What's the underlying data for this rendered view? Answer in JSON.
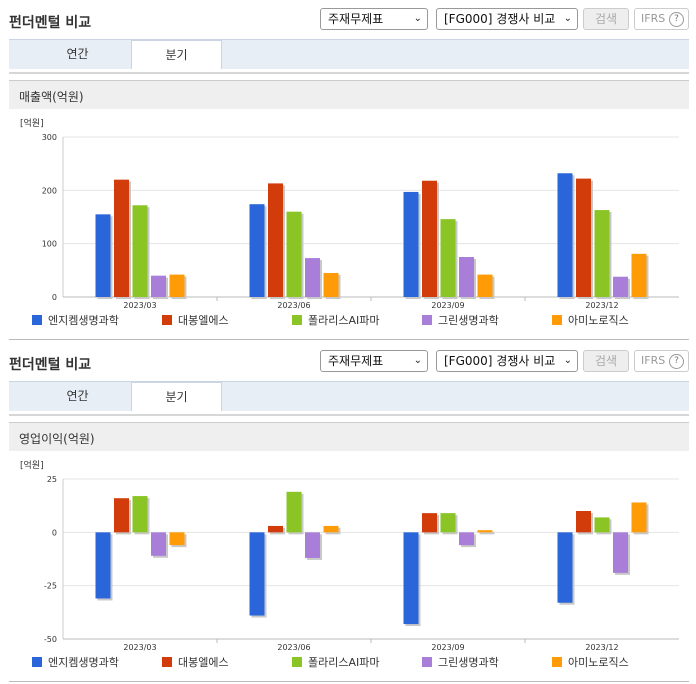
{
  "header": {
    "title": "펀더멘털 비교",
    "select_type": "주재무제표",
    "select_compare": "[FG000] 경쟁사 비교",
    "search_label": "검색",
    "ifrs_label": "IFRS",
    "help_glyph": "?"
  },
  "tabs": [
    "연간",
    "분기"
  ],
  "colors": {
    "accent": "#2A66D9",
    "series": [
      "#2A66D9",
      "#D23B0A",
      "#8BC525",
      "#A97ED9",
      "#FF9B06"
    ]
  },
  "chart_data": [
    {
      "type": "bar",
      "title": "매출액(억원)",
      "unit": "[억원]",
      "categories": [
        "2023/03",
        "2023/06",
        "2023/09",
        "2023/12"
      ],
      "ylim": [
        0,
        300
      ],
      "yticks": [
        0,
        100,
        200,
        300
      ],
      "series": [
        {
          "name": "엔지켐생명과학",
          "values": [
            155,
            174,
            197,
            232
          ]
        },
        {
          "name": "대봉엘에스",
          "values": [
            220,
            213,
            218,
            222
          ]
        },
        {
          "name": "폴라리스AI파마",
          "values": [
            172,
            160,
            146,
            163
          ]
        },
        {
          "name": "그린생명과학",
          "values": [
            40,
            73,
            75,
            38
          ]
        },
        {
          "name": "아미노로직스",
          "values": [
            42,
            45,
            42,
            81
          ]
        }
      ],
      "grid": true,
      "legend": "bottom"
    },
    {
      "type": "bar",
      "title": "영업이익(억원)",
      "unit": "[억원]",
      "categories": [
        "2023/03",
        "2023/06",
        "2023/09",
        "2023/12"
      ],
      "ylim": [
        -50,
        25
      ],
      "yticks": [
        -50,
        -25,
        0,
        25
      ],
      "series": [
        {
          "name": "엔지켐생명과학",
          "values": [
            -31,
            -39,
            -43,
            -33
          ]
        },
        {
          "name": "대봉엘에스",
          "values": [
            16,
            3,
            9,
            10
          ]
        },
        {
          "name": "폴라리스AI파마",
          "values": [
            17,
            19,
            9,
            7
          ]
        },
        {
          "name": "그린생명과학",
          "values": [
            -11,
            -12,
            -6,
            -19
          ]
        },
        {
          "name": "아미노로직스",
          "values": [
            -6,
            3,
            1,
            14
          ]
        }
      ],
      "grid": true,
      "legend": "bottom"
    }
  ]
}
